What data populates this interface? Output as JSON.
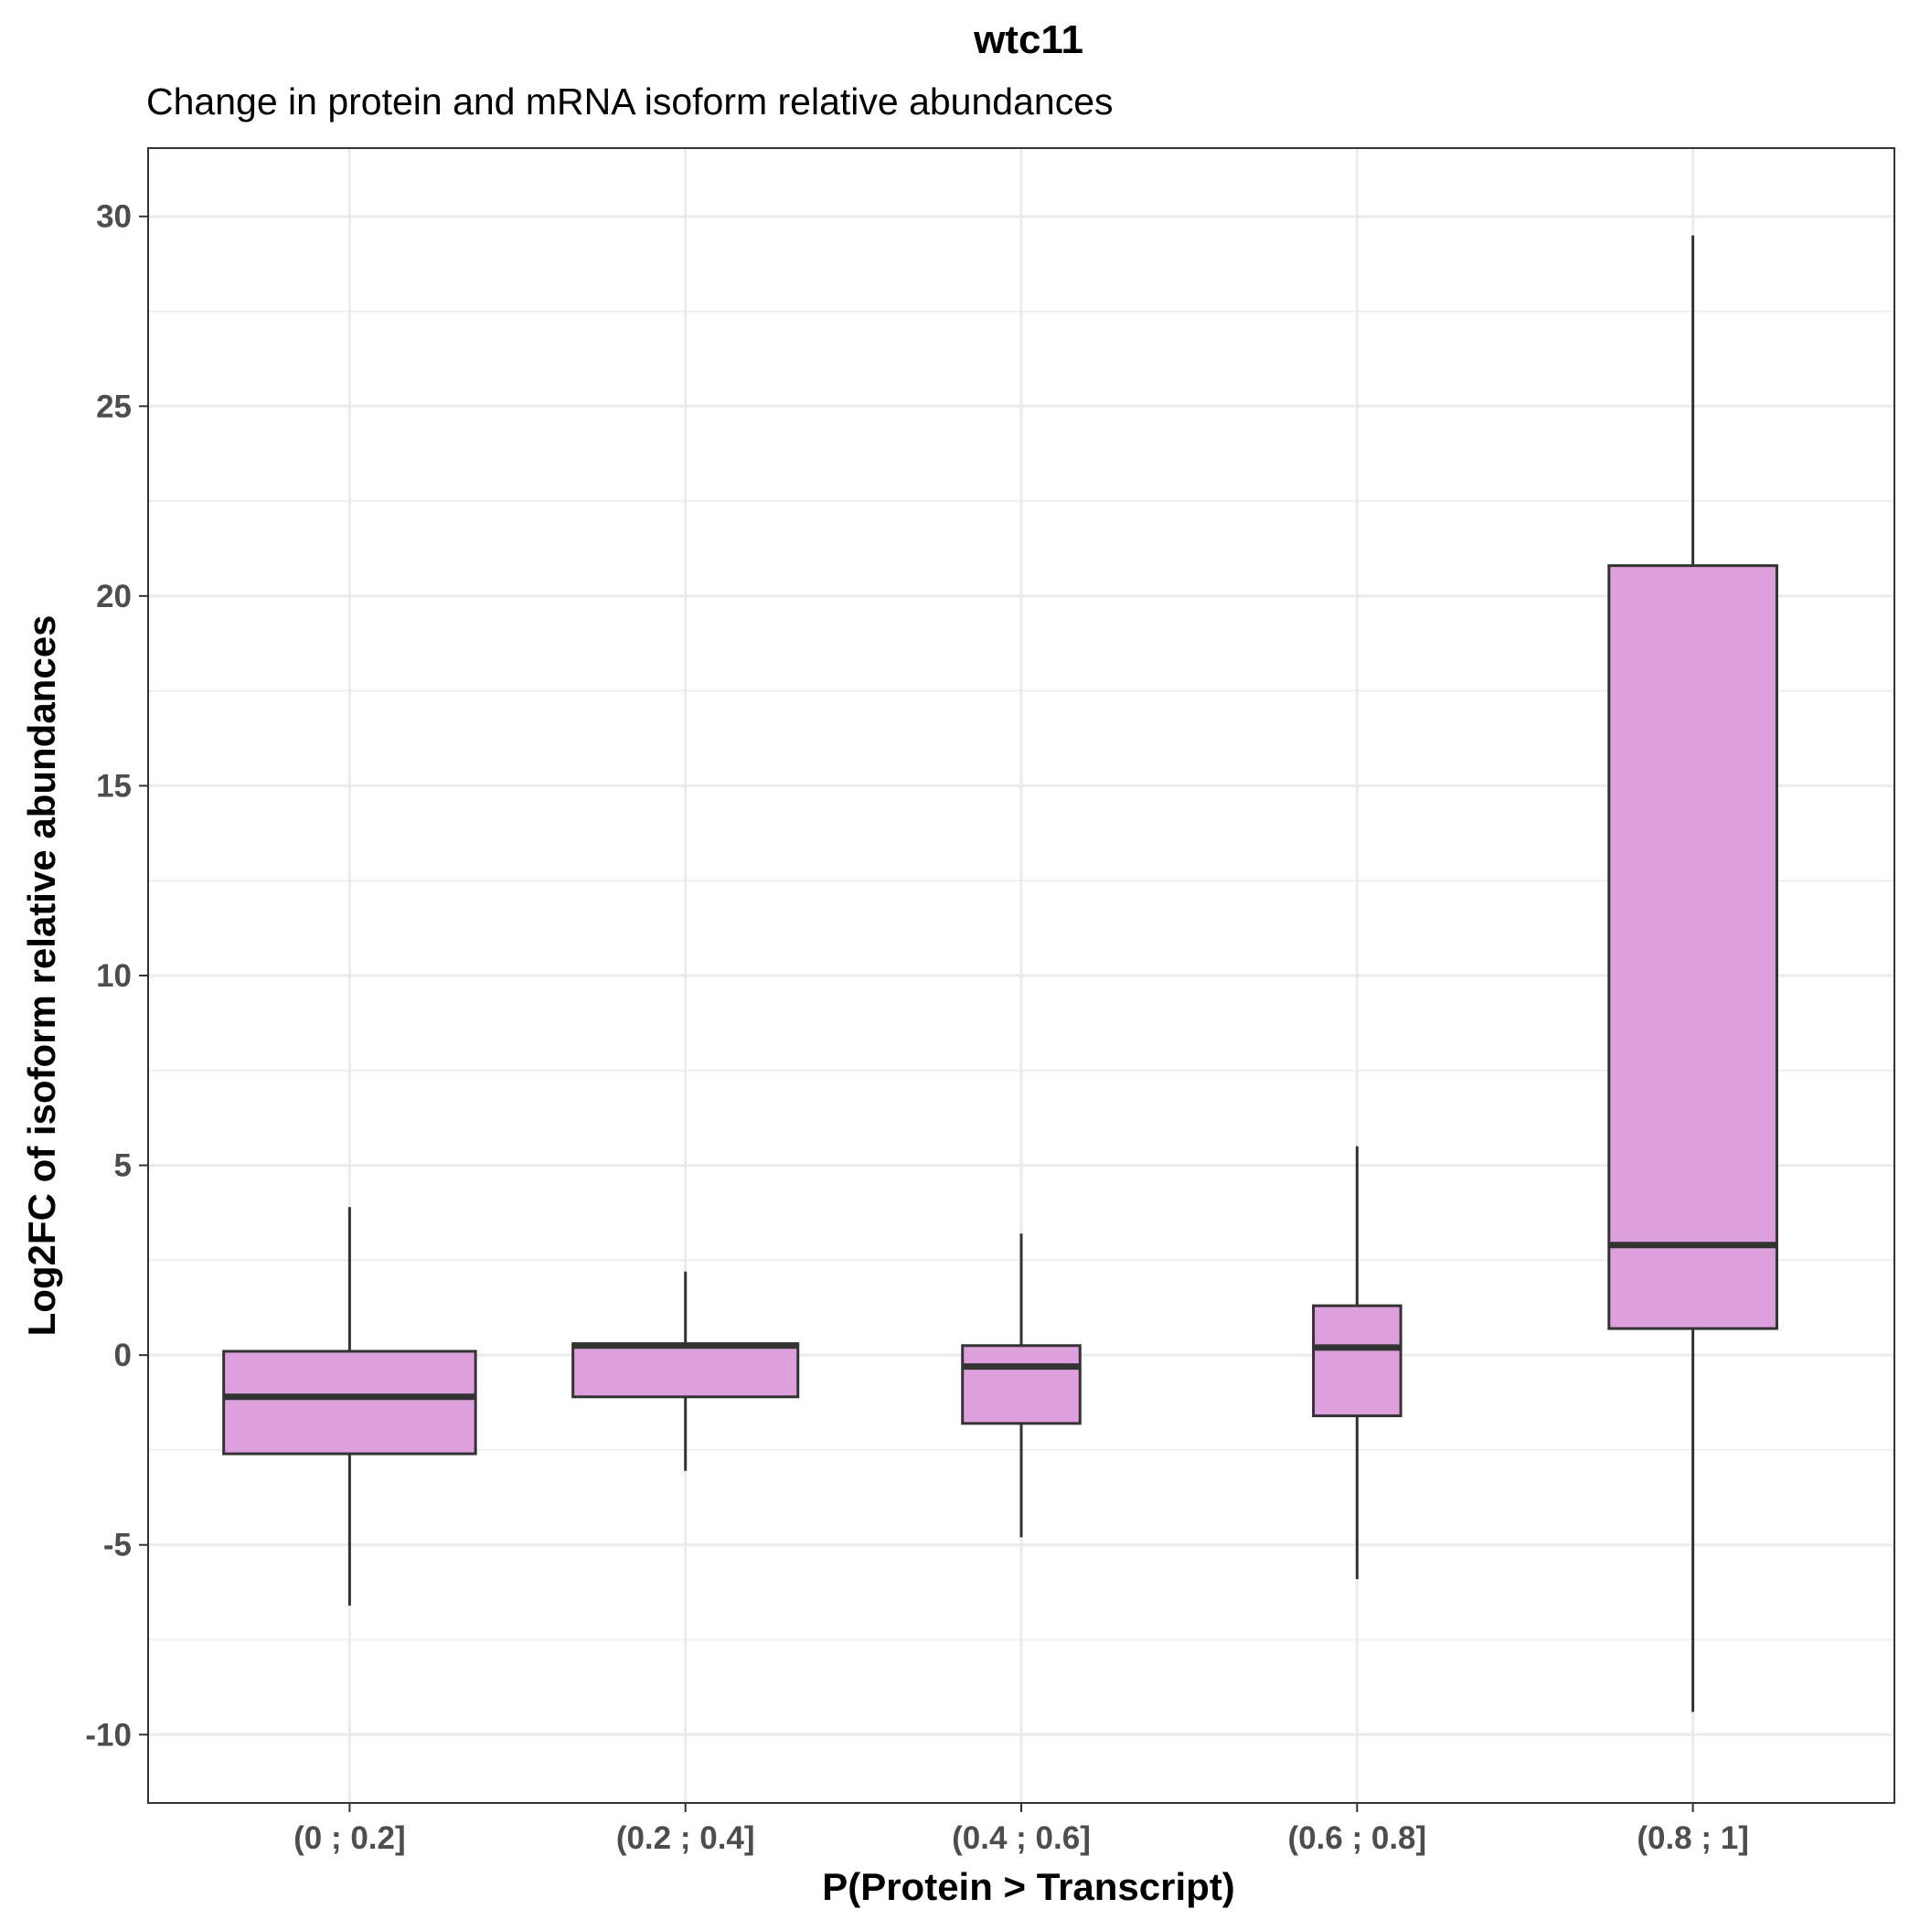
{
  "chart_data": {
    "type": "boxplot",
    "title": "wtc11",
    "subtitle": "Change in protein and mRNA isoform relative abundances",
    "xlabel": "P(Protein > Transcript)",
    "ylabel": "Log2FC of isoform relative abundances",
    "ylim": [
      -11.8,
      31.8
    ],
    "yticks": [
      -10,
      -5,
      0,
      5,
      10,
      15,
      20,
      25,
      30
    ],
    "ytick_labels": [
      "-10",
      "-5",
      "0",
      "5",
      "10",
      "15",
      "20",
      "25",
      "30"
    ],
    "categories": [
      "(0 ; 0.2]",
      "(0.2 ; 0.4]",
      "(0.4 ; 0.6]",
      "(0.6 ; 0.8]",
      "(0.8 ; 1]"
    ],
    "boxes": [
      {
        "category": "(0 ; 0.2]",
        "whisker_low": -6.6,
        "q1": -2.6,
        "median": -1.1,
        "q3": 0.1,
        "whisker_high": 3.9,
        "width": 0.75
      },
      {
        "category": "(0.2 ; 0.4]",
        "whisker_low": -3.05,
        "q1": -1.1,
        "median": 0.25,
        "q3": 0.3,
        "whisker_high": 2.2,
        "width": 0.67
      },
      {
        "category": "(0.4 ; 0.6]",
        "whisker_low": -4.8,
        "q1": -1.8,
        "median": -0.3,
        "q3": 0.25,
        "whisker_high": 3.2,
        "width": 0.35
      },
      {
        "category": "(0.6 ; 0.8]",
        "whisker_low": -5.9,
        "q1": -1.6,
        "median": 0.2,
        "q3": 1.3,
        "whisker_high": 5.5,
        "width": 0.26
      },
      {
        "category": "(0.8 ; 1]",
        "whisker_low": -9.4,
        "q1": 0.7,
        "median": 2.9,
        "q3": 20.8,
        "whisker_high": 29.5,
        "width": 0.5
      }
    ],
    "fill_color": "#dda0dd",
    "line_color": "#333333",
    "grid": true,
    "theme": "bw"
  }
}
